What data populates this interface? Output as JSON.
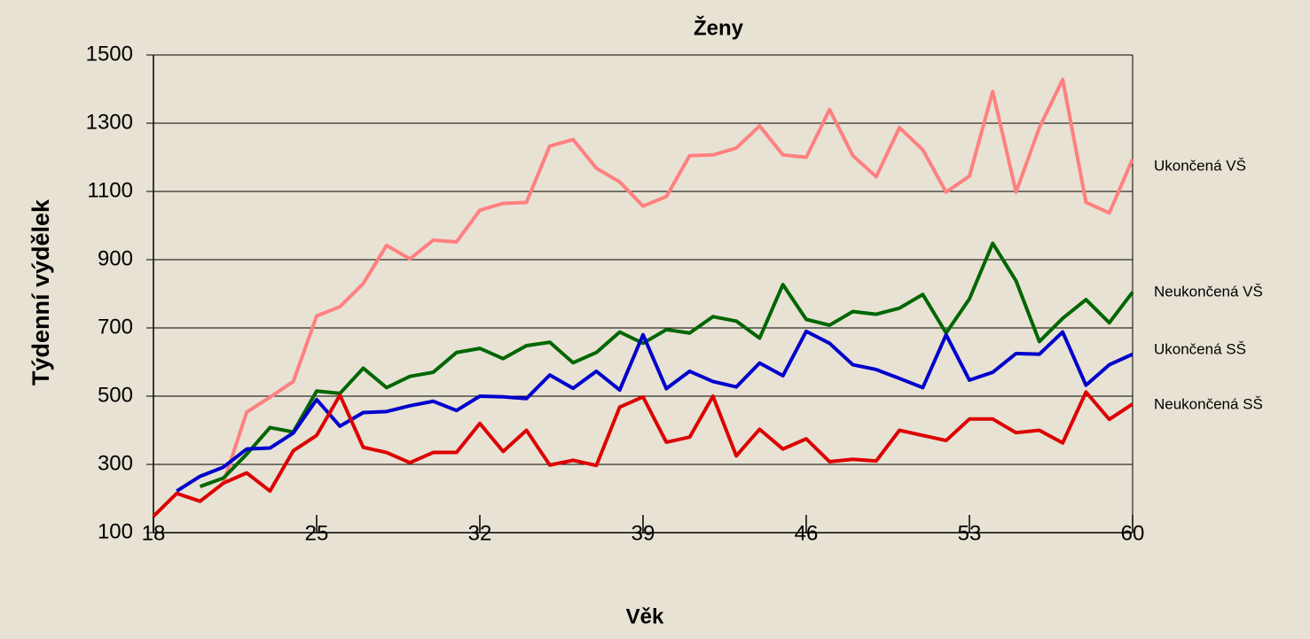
{
  "chart_data": {
    "type": "line",
    "title": "Ženy",
    "x_label": "Věk",
    "y_label": "Týdenní výdělek",
    "x": [
      18,
      19,
      20,
      21,
      22,
      23,
      24,
      25,
      26,
      27,
      28,
      29,
      30,
      31,
      32,
      33,
      34,
      35,
      36,
      37,
      38,
      39,
      40,
      41,
      42,
      43,
      44,
      45,
      46,
      47,
      48,
      49,
      50,
      51,
      52,
      53,
      54,
      55,
      56,
      57,
      58,
      59,
      60
    ],
    "xlim": [
      18,
      60
    ],
    "xticks": [
      18,
      25,
      32,
      39,
      46,
      53,
      60
    ],
    "ylim": [
      100,
      1500
    ],
    "yticks": [
      100,
      300,
      500,
      700,
      900,
      1100,
      1300,
      1500
    ],
    "grid": true,
    "series": [
      {
        "name": "Ukončená VŠ",
        "color": "#ff8080",
        "values": [
          null,
          null,
          null,
          245,
          453,
          497,
          543,
          735,
          762,
          830,
          942,
          902,
          957,
          952,
          1045,
          1065,
          1068,
          1233,
          1252,
          1168,
          1128,
          1057,
          1085,
          1205,
          1207,
          1227,
          1292,
          1207,
          1200,
          1340,
          1205,
          1143,
          1287,
          1222,
          1098,
          1145,
          1393,
          1098,
          1287,
          1428,
          1068,
          1037,
          1195
        ]
      },
      {
        "name": "Neukončená VŠ",
        "color": "#006600",
        "values": [
          null,
          null,
          235,
          260,
          330,
          408,
          395,
          515,
          508,
          582,
          525,
          558,
          570,
          628,
          640,
          610,
          648,
          658,
          598,
          628,
          688,
          655,
          695,
          685,
          733,
          720,
          670,
          827,
          725,
          708,
          748,
          740,
          758,
          798,
          685,
          785,
          948,
          838,
          660,
          728,
          783,
          715,
          805
        ]
      },
      {
        "name": "Ukončená SŠ",
        "color": "#0000cc",
        "values": [
          null,
          222,
          265,
          292,
          345,
          348,
          392,
          490,
          412,
          452,
          455,
          472,
          485,
          458,
          500,
          498,
          493,
          562,
          523,
          573,
          518,
          680,
          522,
          573,
          543,
          527,
          597,
          560,
          690,
          655,
          592,
          578,
          552,
          525,
          680,
          547,
          570,
          625,
          623,
          688,
          532,
          592,
          623
        ]
      },
      {
        "name": "Neukončená SŠ",
        "color": "#dd0000",
        "values": [
          148,
          215,
          192,
          245,
          275,
          222,
          340,
          385,
          503,
          350,
          335,
          305,
          335,
          335,
          420,
          338,
          400,
          298,
          312,
          297,
          468,
          498,
          365,
          380,
          500,
          325,
          403,
          345,
          375,
          308,
          315,
          310,
          400,
          385,
          370,
          433,
          433,
          393,
          400,
          363,
          512,
          432,
          477
        ]
      }
    ]
  }
}
